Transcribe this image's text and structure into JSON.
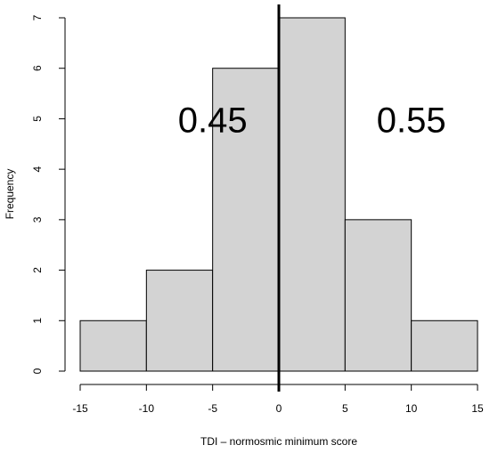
{
  "chart_data": {
    "type": "bar",
    "title": "",
    "xlabel": "TDI – normosmic minimum score",
    "ylabel": "Frequency",
    "bins": [
      {
        "from": -15,
        "to": -10,
        "count": 1
      },
      {
        "from": -10,
        "to": -5,
        "count": 2
      },
      {
        "from": -5,
        "to": 0,
        "count": 6
      },
      {
        "from": 0,
        "to": 5,
        "count": 7
      },
      {
        "from": 5,
        "to": 10,
        "count": 3
      },
      {
        "from": 10,
        "to": 15,
        "count": 1
      }
    ],
    "x_ticks": [
      "-15",
      "-10",
      "-5",
      "0",
      "5",
      "10",
      "15"
    ],
    "y_ticks": [
      "0",
      "1",
      "2",
      "3",
      "4",
      "5",
      "6",
      "7"
    ],
    "xlim": [
      -15,
      15
    ],
    "ylim": [
      0,
      7
    ],
    "vertical_line_x": 0,
    "annotations": [
      {
        "text": "0.45",
        "x": -5,
        "y": 5
      },
      {
        "text": "0.55",
        "x": 10,
        "y": 5
      }
    ],
    "bar_color": "#d3d3d3",
    "edge_color": "#000000",
    "grid": false
  }
}
